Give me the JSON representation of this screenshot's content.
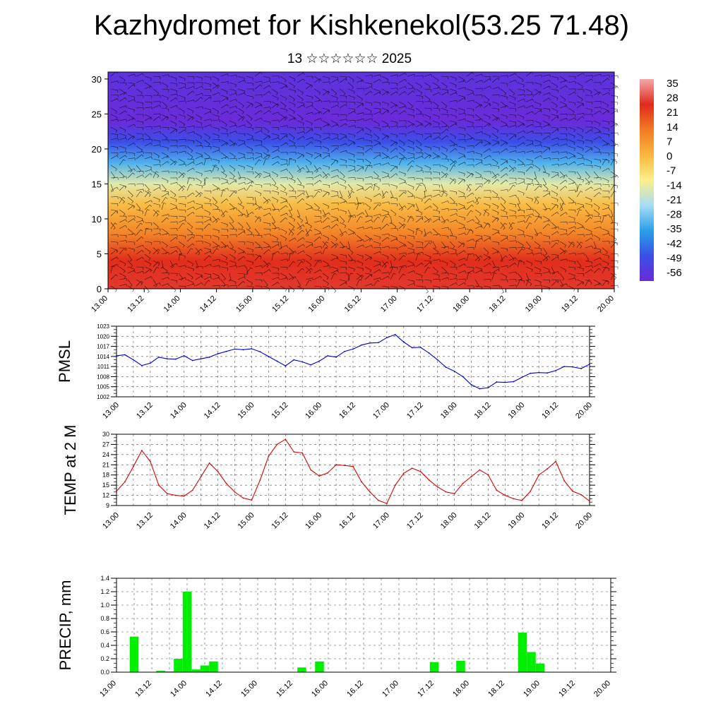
{
  "header": {
    "title": "Kazhydromet for Kishkenekol(53.25 71.48)",
    "subtitle": "13 ☆☆☆☆☆☆ 2025"
  },
  "colorbar": {
    "labels": [
      "35",
      "28",
      "21",
      "14",
      "7",
      "0",
      "-7",
      "-14",
      "-21",
      "-28",
      "-35",
      "-42",
      "-49",
      "-56"
    ]
  },
  "chart_data": [
    {
      "type": "heatmap",
      "title": "Kazhydromet for Kishkenekol(53.25 71.48)",
      "xlabel": "",
      "ylabel": "",
      "x_tick_labels": [
        "13.00",
        "13.12",
        "14.00",
        "14.12",
        "15.00",
        "15.12",
        "16.00",
        "16.12",
        "17.00",
        "17.12",
        "18.00",
        "18.12",
        "19.00",
        "19.12",
        "20.00"
      ],
      "y_ticks": [
        0,
        5,
        10,
        15,
        20,
        25,
        30
      ],
      "ylim": [
        0,
        31
      ],
      "color_scale": {
        "min": -56,
        "max": 35,
        "colors": [
          "#6a2bd8",
          "#3a4fe8",
          "#2aa0e8",
          "#a9dcf5",
          "#fbf08a",
          "#f9b73e",
          "#f07a22",
          "#e02a1c",
          "#f2a8a8"
        ]
      },
      "temperature_by_level": [
        {
          "y": 0,
          "value": 25
        },
        {
          "y": 4,
          "value": 23
        },
        {
          "y": 8,
          "value": 10
        },
        {
          "y": 12,
          "value": 0
        },
        {
          "y": 15,
          "value": -14
        },
        {
          "y": 18,
          "value": -30
        },
        {
          "y": 21,
          "value": -45
        },
        {
          "y": 24,
          "value": -56
        },
        {
          "y": 31,
          "value": -53
        }
      ],
      "overlay": "wind barbs"
    },
    {
      "type": "line",
      "ylabel": "PMSL",
      "x_tick_labels": [
        "13.00",
        "13.12",
        "14.00",
        "14.12",
        "15.00",
        "15.12",
        "16.00",
        "16.12",
        "17.00",
        "17.12",
        "18.00",
        "18.12",
        "19.00",
        "19.12",
        "20.00"
      ],
      "y_ticks": [
        1002,
        1005,
        1008,
        1011,
        1014,
        1017,
        1020,
        1023
      ],
      "ylim": [
        1002,
        1023
      ],
      "series": [
        {
          "color": "#0000dd",
          "x": [
            0,
            3,
            6,
            9,
            12,
            15,
            18,
            21,
            24,
            27,
            30,
            33,
            36,
            39,
            42,
            45,
            48,
            51,
            54,
            57,
            60,
            63,
            66,
            69,
            72,
            75,
            78,
            81,
            84,
            87,
            90,
            93,
            96,
            99,
            102,
            105,
            108,
            111,
            114,
            117,
            120,
            123,
            126,
            129,
            132,
            135,
            138,
            141,
            144,
            147,
            150,
            153,
            156,
            159,
            162,
            165,
            168
          ],
          "values": [
            1014.2,
            1014.5,
            1013,
            1011.3,
            1012,
            1013.8,
            1013.3,
            1013.2,
            1014.2,
            1012.8,
            1013.3,
            1013.8,
            1014.8,
            1015.5,
            1016.2,
            1016,
            1016.3,
            1015.4,
            1014,
            1012.6,
            1011.2,
            1013,
            1012.4,
            1011.5,
            1012.6,
            1014.2,
            1013.8,
            1015.5,
            1016.2,
            1017.4,
            1018,
            1018.1,
            1019.6,
            1020.5,
            1018.3,
            1016.6,
            1016.7,
            1015,
            1013,
            1010.8,
            1009.6,
            1008,
            1005.6,
            1004.4,
            1004.7,
            1006.4,
            1006.3,
            1006.5,
            1007.8,
            1009,
            1009.2,
            1009.1,
            1009.8,
            1011,
            1010.9,
            1010.4,
            1011.7
          ]
        }
      ]
    },
    {
      "type": "line",
      "ylabel": "TEMP at 2 M",
      "x_tick_labels": [
        "13.00",
        "13.12",
        "14.00",
        "14.12",
        "15.00",
        "15.12",
        "16.00",
        "16.12",
        "17.00",
        "17.12",
        "18.00",
        "18.12",
        "19.00",
        "19.12",
        "20.00"
      ],
      "y_ticks": [
        9,
        12,
        15,
        18,
        21,
        24,
        27,
        30
      ],
      "ylim": [
        9,
        30
      ],
      "series": [
        {
          "color": "#dd0000",
          "x": [
            0,
            3,
            6,
            9,
            12,
            15,
            18,
            21,
            24,
            27,
            30,
            33,
            36,
            39,
            42,
            45,
            48,
            51,
            54,
            57,
            60,
            63,
            66,
            69,
            72,
            75,
            78,
            81,
            84,
            87,
            90,
            93,
            96,
            99,
            102,
            105,
            108,
            111,
            114,
            117,
            120,
            123,
            126,
            129,
            132,
            135,
            138,
            141,
            144,
            147,
            150,
            153,
            156,
            159,
            162,
            165,
            168
          ],
          "values": [
            13.2,
            16,
            20.5,
            25.2,
            22,
            15,
            12.5,
            12,
            11.8,
            13.5,
            17.5,
            21.5,
            19,
            15.5,
            13,
            11.2,
            10.6,
            16.5,
            23.5,
            27,
            28.5,
            24.8,
            24.5,
            19.5,
            17.7,
            18.6,
            21,
            20.8,
            20.5,
            16,
            13,
            10.5,
            9.6,
            15,
            18.5,
            20,
            19,
            16.5,
            14.5,
            13,
            12.5,
            15.5,
            17.5,
            19.5,
            18,
            13.5,
            12,
            11,
            10.5,
            13.2,
            18,
            19.8,
            22,
            16.3,
            13.2,
            12.2,
            10.3
          ]
        }
      ]
    },
    {
      "type": "bar",
      "ylabel": "PRECIP, mm",
      "x_tick_labels": [
        "13.00",
        "13.12",
        "14.00",
        "14.12",
        "15.00",
        "15.12",
        "16.00",
        "16.12",
        "17.00",
        "17.12",
        "18.00",
        "18.12",
        "19.00",
        "19.12",
        "20.00"
      ],
      "y_ticks": [
        0.0,
        0.2,
        0.4,
        0.6,
        0.8,
        1.0,
        1.2,
        1.4
      ],
      "ylim": [
        0,
        1.4
      ],
      "color": "#00ee00",
      "bars": [
        {
          "x": 6,
          "value": 0.53
        },
        {
          "x": 15,
          "value": 0.02
        },
        {
          "x": 18,
          "value": 0.01
        },
        {
          "x": 21,
          "value": 0.2
        },
        {
          "x": 24,
          "value": 1.2
        },
        {
          "x": 27,
          "value": 0.04
        },
        {
          "x": 30,
          "value": 0.1
        },
        {
          "x": 33,
          "value": 0.16
        },
        {
          "x": 63,
          "value": 0.07
        },
        {
          "x": 69,
          "value": 0.16
        },
        {
          "x": 108,
          "value": 0.15
        },
        {
          "x": 117,
          "value": 0.17
        },
        {
          "x": 138,
          "value": 0.59
        },
        {
          "x": 141,
          "value": 0.3
        },
        {
          "x": 144,
          "value": 0.13
        }
      ]
    }
  ]
}
